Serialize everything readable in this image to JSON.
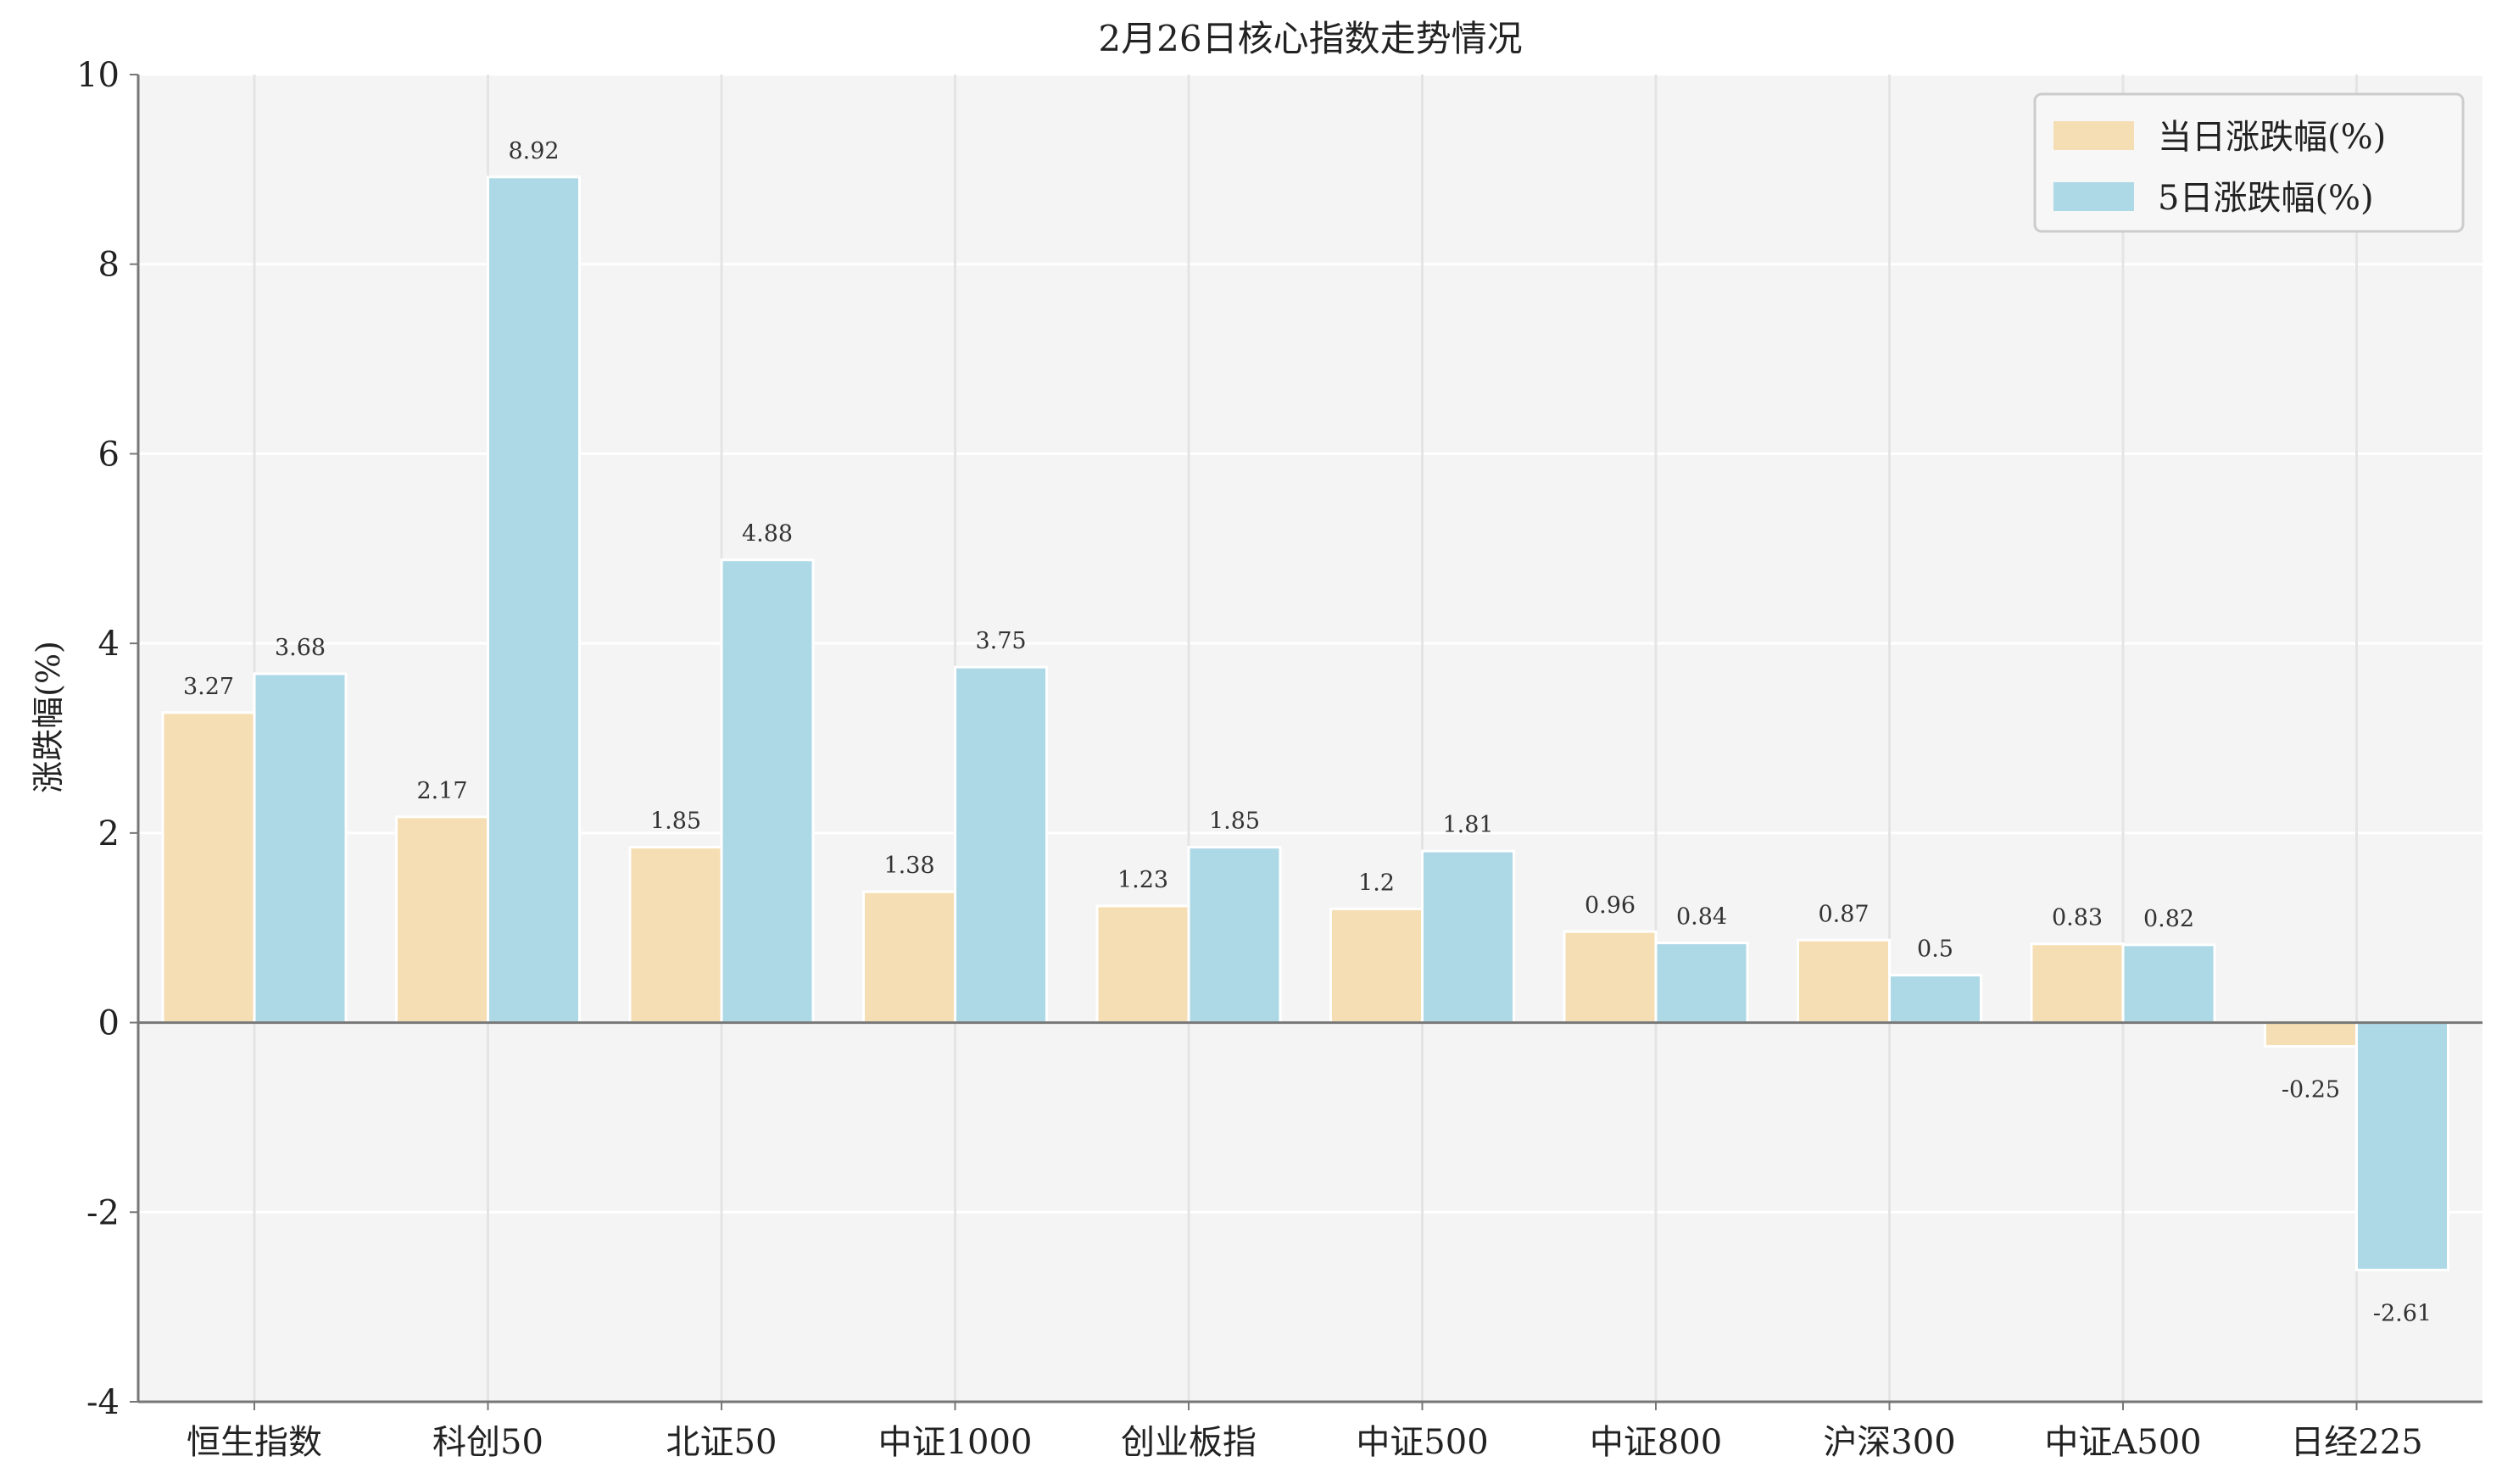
{
  "chart_data": {
    "type": "bar",
    "title": "2月26日核心指数走势情况",
    "xlabel": "",
    "ylabel": "涨跌幅(%)",
    "ylim": [
      -4,
      10
    ],
    "yticks": [
      -4,
      -2,
      0,
      2,
      4,
      6,
      8,
      10
    ],
    "grid": true,
    "legend_position": "top-right",
    "categories": [
      "恒生指数",
      "科创50",
      "北证50",
      "中证1000",
      "创业板指",
      "中证500",
      "中证800",
      "沪深300",
      "中证A500",
      "日经225"
    ],
    "series": [
      {
        "name": "当日涨跌幅(%)",
        "color": "#F5DEB3",
        "values": [
          3.27,
          2.17,
          1.85,
          1.38,
          1.23,
          1.2,
          0.96,
          0.87,
          0.83,
          -0.25
        ]
      },
      {
        "name": "5日涨跌幅(%)",
        "color": "#ADD8E6",
        "values": [
          3.68,
          8.92,
          4.88,
          3.75,
          1.85,
          1.81,
          0.84,
          0.5,
          0.82,
          -2.61
        ]
      }
    ],
    "colors": {
      "plot_background": "#F4F4F4",
      "grid": "#FFFFFF",
      "axis": "#777777"
    }
  }
}
